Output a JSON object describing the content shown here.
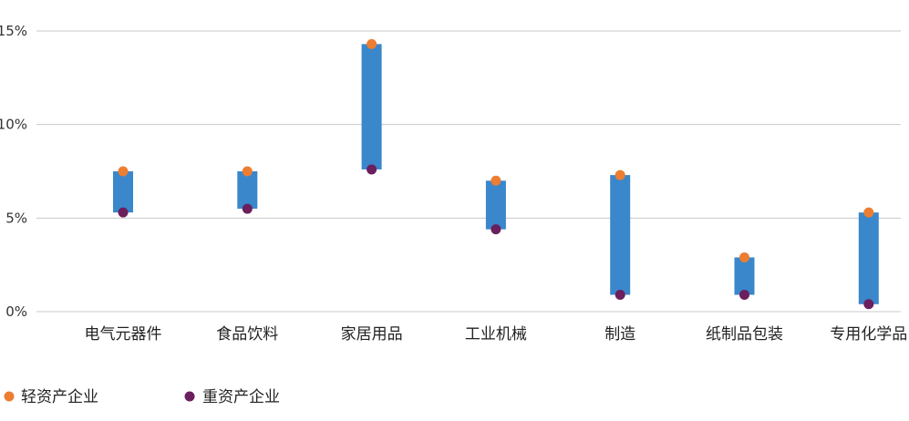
{
  "chart_data": {
    "type": "bar",
    "categories": [
      "电气元器件",
      "食品饮料",
      "家居用品",
      "工业机械",
      "制造",
      "纸制品包装",
      "专用化学品"
    ],
    "series": [
      {
        "name": "轻资产企业",
        "values": [
          7.5,
          7.5,
          14.3,
          7.0,
          7.3,
          2.9,
          5.3
        ],
        "color": "#ED7D31"
      },
      {
        "name": "重资产企业",
        "values": [
          5.3,
          5.5,
          7.6,
          4.4,
          0.9,
          0.9,
          0.4
        ],
        "color": "#6B1F5C"
      }
    ],
    "range_bar_color": "#3A87CB",
    "y_ticks": [
      "0%",
      "5%",
      "10%",
      "15%"
    ],
    "ylim": [
      0,
      15
    ],
    "grid": true,
    "legend_position": "bottom-left",
    "title": "",
    "xlabel": "",
    "ylabel": ""
  }
}
